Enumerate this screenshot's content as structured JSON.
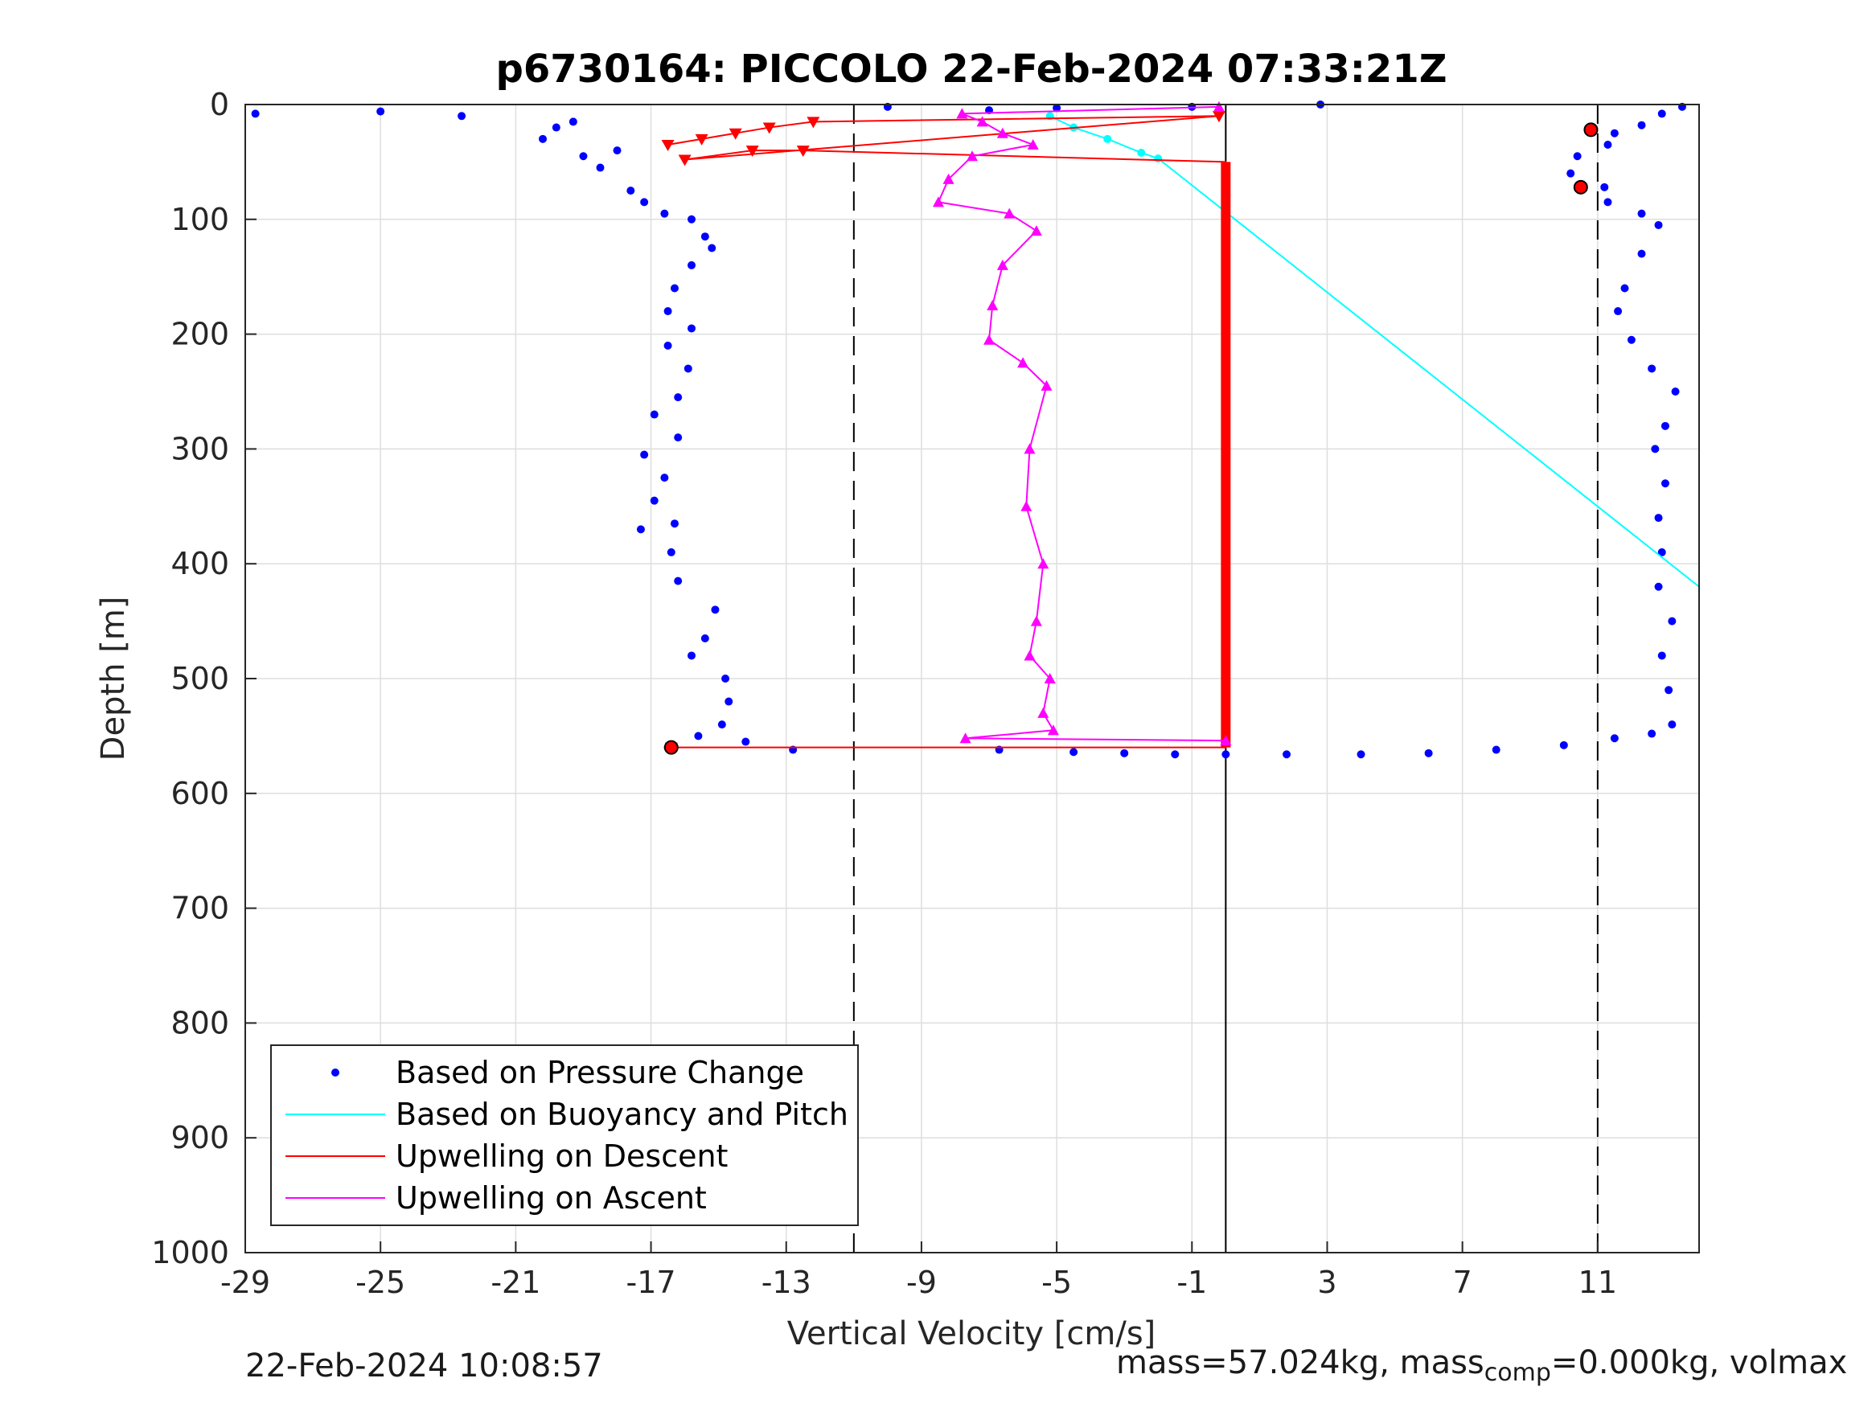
{
  "chart_data": {
    "type": "scatter",
    "title": "p6730164: PICCOLO 22-Feb-2024 07:33:21Z",
    "xlabel": "Vertical Velocity [cm/s]",
    "ylabel": "Depth [m]",
    "xlim": [
      -29,
      14
    ],
    "ylim": [
      0,
      1000
    ],
    "y_reversed": true,
    "grid": true,
    "xticks": [
      -29,
      -25,
      -21,
      -17,
      -13,
      -9,
      -5,
      -1,
      3,
      7,
      11
    ],
    "yticks": [
      0,
      100,
      200,
      300,
      400,
      500,
      600,
      700,
      800,
      900,
      1000
    ],
    "reference_lines": {
      "dashed_x": [
        -11,
        11
      ],
      "solid_x": [
        0
      ]
    },
    "legend": {
      "placement": "bottom-left",
      "entries": [
        {
          "label": "Based on Pressure Change",
          "color": "#0000ff",
          "marker": "dot"
        },
        {
          "label": "Based on Buoyancy and Pitch",
          "color": "#00ffff",
          "marker": "line"
        },
        {
          "label": "Upwelling on Descent",
          "color": "#ff0000",
          "marker": "line"
        },
        {
          "label": "Upwelling on Ascent",
          "color": "#ff00ff",
          "marker": "line"
        }
      ]
    },
    "series": [
      {
        "name": "Based on Pressure Change (descent)",
        "color": "#0000ff",
        "points": [
          [
            -28.7,
            8
          ],
          [
            -25,
            6
          ],
          [
            -22.6,
            10
          ],
          [
            -20.2,
            30
          ],
          [
            -19.8,
            20
          ],
          [
            -19.3,
            15
          ],
          [
            -19,
            45
          ],
          [
            -18.5,
            55
          ],
          [
            -18,
            40
          ],
          [
            -17.6,
            75
          ],
          [
            -17.2,
            85
          ],
          [
            -16.6,
            95
          ],
          [
            -15.8,
            100
          ],
          [
            -15.4,
            115
          ],
          [
            -15.2,
            125
          ],
          [
            -15.8,
            140
          ],
          [
            -16.3,
            160
          ],
          [
            -16.5,
            180
          ],
          [
            -15.8,
            195
          ],
          [
            -16.5,
            210
          ],
          [
            -15.9,
            230
          ],
          [
            -16.2,
            255
          ],
          [
            -16.9,
            270
          ],
          [
            -16.2,
            290
          ],
          [
            -17.2,
            305
          ],
          [
            -16.6,
            325
          ],
          [
            -16.9,
            345
          ],
          [
            -16.3,
            365
          ],
          [
            -17.3,
            370
          ],
          [
            -16.4,
            390
          ],
          [
            -16.2,
            415
          ],
          [
            -15.1,
            440
          ],
          [
            -15.4,
            465
          ],
          [
            -15.8,
            480
          ],
          [
            -14.8,
            500
          ],
          [
            -14.7,
            520
          ],
          [
            -14.9,
            540
          ],
          [
            -15.6,
            550
          ],
          [
            -14.2,
            555
          ],
          [
            -12.8,
            562
          ],
          [
            -16.5,
            560
          ]
        ]
      },
      {
        "name": "Based on Pressure Change (ascent)",
        "color": "#0000ff",
        "points": [
          [
            -10,
            2
          ],
          [
            -7,
            5
          ],
          [
            -5,
            3
          ],
          [
            -1,
            2
          ],
          [
            2.8,
            0
          ],
          [
            13.5,
            2
          ],
          [
            12.9,
            8
          ],
          [
            12.3,
            18
          ],
          [
            11.5,
            25
          ],
          [
            11.3,
            35
          ],
          [
            10.4,
            45
          ],
          [
            10.2,
            60
          ],
          [
            11.2,
            72
          ],
          [
            11.3,
            85
          ],
          [
            12.3,
            95
          ],
          [
            12.8,
            105
          ],
          [
            12.3,
            130
          ],
          [
            11.8,
            160
          ],
          [
            11.6,
            180
          ],
          [
            12,
            205
          ],
          [
            12.6,
            230
          ],
          [
            13.3,
            250
          ],
          [
            13,
            280
          ],
          [
            12.7,
            300
          ],
          [
            13,
            330
          ],
          [
            12.8,
            360
          ],
          [
            12.9,
            390
          ],
          [
            12.8,
            420
          ],
          [
            13.2,
            450
          ],
          [
            12.9,
            480
          ],
          [
            13.1,
            510
          ],
          [
            13.2,
            540
          ],
          [
            12.6,
            548
          ],
          [
            11.5,
            552
          ],
          [
            10,
            558
          ],
          [
            8,
            562
          ],
          [
            6,
            565
          ],
          [
            4,
            566
          ],
          [
            1.8,
            566
          ],
          [
            0,
            566
          ],
          [
            -1.5,
            566
          ],
          [
            -3,
            565
          ],
          [
            -4.5,
            564
          ],
          [
            -6.7,
            562
          ]
        ]
      },
      {
        "name": "Based on Buoyancy and Pitch",
        "color": "#00ffff",
        "points": [
          [
            -5.2,
            10
          ],
          [
            -4.5,
            20
          ],
          [
            -3.5,
            30
          ],
          [
            -2.5,
            42
          ],
          [
            -2.0,
            47
          ],
          [
            14,
            420
          ]
        ]
      },
      {
        "name": "Upwelling on Descent",
        "color": "#ff0000",
        "points": [
          [
            -16.5,
            35
          ],
          [
            -15.5,
            30
          ],
          [
            -14.5,
            25
          ],
          [
            -13.5,
            20
          ],
          [
            -12.2,
            15
          ],
          [
            -0.2,
            10
          ],
          [
            -16,
            48
          ],
          [
            -14,
            40
          ],
          [
            -12.5,
            40
          ],
          [
            0,
            50
          ],
          [
            0,
            560
          ],
          [
            -16.4,
            560
          ],
          [
            10.8,
            22
          ],
          [
            10.5,
            72
          ]
        ]
      },
      {
        "name": "Upwelling on Ascent",
        "color": "#ff00ff",
        "points": [
          [
            -0.2,
            2
          ],
          [
            -7.8,
            8
          ],
          [
            -7.2,
            15
          ],
          [
            -6.6,
            25
          ],
          [
            -5.7,
            35
          ],
          [
            -7.5,
            45
          ],
          [
            -8.2,
            65
          ],
          [
            -8.5,
            85
          ],
          [
            -6.4,
            95
          ],
          [
            -5.6,
            110
          ],
          [
            -6.6,
            140
          ],
          [
            -6.9,
            175
          ],
          [
            -7,
            205
          ],
          [
            -6,
            225
          ],
          [
            -5.3,
            245
          ],
          [
            -5.8,
            300
          ],
          [
            -5.9,
            350
          ],
          [
            -5.4,
            400
          ],
          [
            -5.6,
            450
          ],
          [
            -5.8,
            480
          ],
          [
            -5.2,
            500
          ],
          [
            -5.4,
            530
          ],
          [
            -5.1,
            545
          ],
          [
            -7.7,
            552
          ],
          [
            0,
            554
          ]
        ]
      }
    ]
  },
  "footer": {
    "timestamp": "22-Feb-2024 10:08:57",
    "mass_prefix": "mass=57.024kg, mass",
    "mass_sub": "comp",
    "mass_suffix": "=0.000kg, volmax"
  }
}
